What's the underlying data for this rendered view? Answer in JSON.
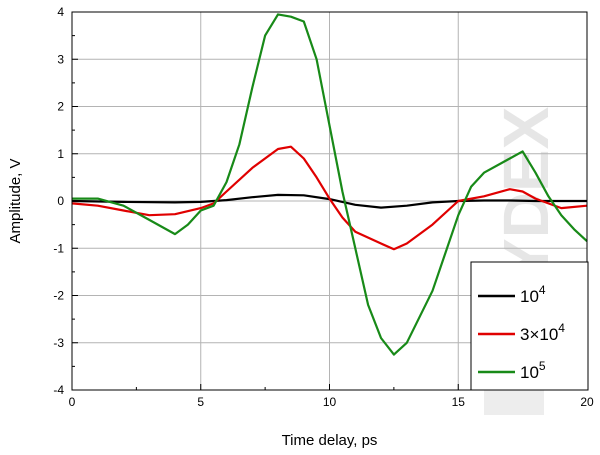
{
  "chart_data": {
    "type": "line",
    "title": "",
    "xlabel": "Time delay, ps",
    "ylabel": "Amplitude, V",
    "xlim": [
      0,
      20
    ],
    "ylim": [
      -4,
      4
    ],
    "x_ticks": [
      "0",
      "5",
      "10",
      "15",
      "20"
    ],
    "y_ticks": [
      "4",
      "3",
      "2",
      "1",
      "0",
      "-1",
      "-2",
      "-3",
      "-4"
    ],
    "grid": true,
    "legend_position": "bottom-right",
    "watermark": "TYDEX",
    "series": [
      {
        "name_base": "10",
        "name_exp": "4",
        "color": "#000000",
        "points": [
          [
            0,
            0
          ],
          [
            2,
            -0.02
          ],
          [
            4,
            -0.03
          ],
          [
            5,
            -0.02
          ],
          [
            6,
            0.02
          ],
          [
            7,
            0.08
          ],
          [
            8,
            0.13
          ],
          [
            9,
            0.12
          ],
          [
            10,
            0.04
          ],
          [
            11,
            -0.08
          ],
          [
            12,
            -0.14
          ],
          [
            13,
            -0.1
          ],
          [
            14,
            -0.03
          ],
          [
            15,
            0
          ],
          [
            16,
            0.01
          ],
          [
            17,
            0.01
          ],
          [
            18,
            0
          ],
          [
            20,
            0
          ]
        ]
      },
      {
        "name_base": "3×10",
        "name_exp": "4",
        "color": "#e00000",
        "points": [
          [
            0,
            -0.05
          ],
          [
            1,
            -0.1
          ],
          [
            2,
            -0.2
          ],
          [
            3,
            -0.3
          ],
          [
            4,
            -0.28
          ],
          [
            5,
            -0.15
          ],
          [
            5.5,
            -0.05
          ],
          [
            6,
            0.2
          ],
          [
            7,
            0.7
          ],
          [
            8,
            1.1
          ],
          [
            8.5,
            1.15
          ],
          [
            9,
            0.9
          ],
          [
            9.5,
            0.5
          ],
          [
            10,
            0.05
          ],
          [
            10.5,
            -0.35
          ],
          [
            11,
            -0.65
          ],
          [
            12,
            -0.9
          ],
          [
            12.5,
            -1.02
          ],
          [
            13,
            -0.9
          ],
          [
            14,
            -0.5
          ],
          [
            15,
            0
          ],
          [
            16,
            0.1
          ],
          [
            17,
            0.25
          ],
          [
            17.5,
            0.2
          ],
          [
            18,
            0.05
          ],
          [
            19,
            -0.15
          ],
          [
            20,
            -0.1
          ]
        ]
      },
      {
        "name_base": "10",
        "name_exp": "5",
        "color": "#188a18",
        "points": [
          [
            0,
            0.05
          ],
          [
            1,
            0.05
          ],
          [
            2,
            -0.1
          ],
          [
            3,
            -0.4
          ],
          [
            4,
            -0.7
          ],
          [
            4.5,
            -0.5
          ],
          [
            5,
            -0.2
          ],
          [
            5.5,
            -0.1
          ],
          [
            6,
            0.4
          ],
          [
            6.5,
            1.2
          ],
          [
            7,
            2.4
          ],
          [
            7.5,
            3.5
          ],
          [
            8,
            3.95
          ],
          [
            8.5,
            3.9
          ],
          [
            9,
            3.8
          ],
          [
            9.5,
            3.0
          ],
          [
            10,
            1.6
          ],
          [
            10.5,
            0.2
          ],
          [
            11,
            -1.0
          ],
          [
            11.5,
            -2.2
          ],
          [
            12,
            -2.9
          ],
          [
            12.5,
            -3.25
          ],
          [
            13,
            -3.0
          ],
          [
            14,
            -1.9
          ],
          [
            15,
            -0.3
          ],
          [
            15.5,
            0.3
          ],
          [
            16,
            0.6
          ],
          [
            17,
            0.9
          ],
          [
            17.5,
            1.05
          ],
          [
            18,
            0.6
          ],
          [
            18.5,
            0.1
          ],
          [
            19,
            -0.3
          ],
          [
            19.5,
            -0.6
          ],
          [
            20,
            -0.85
          ]
        ]
      }
    ]
  }
}
